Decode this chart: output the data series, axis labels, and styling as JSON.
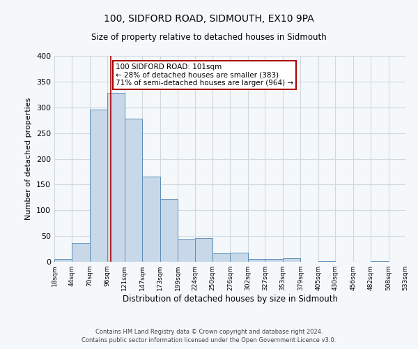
{
  "title1": "100, SIDFORD ROAD, SIDMOUTH, EX10 9PA",
  "title2": "Size of property relative to detached houses in Sidmouth",
  "xlabel": "Distribution of detached houses by size in Sidmouth",
  "ylabel": "Number of detached properties",
  "bin_edges": [
    18,
    44,
    70,
    96,
    121,
    147,
    173,
    199,
    224,
    250,
    276,
    302,
    327,
    353,
    379,
    405,
    430,
    456,
    482,
    508,
    533
  ],
  "bar_heights": [
    5,
    36,
    295,
    328,
    278,
    165,
    122,
    44,
    46,
    16,
    17,
    5,
    5,
    7,
    0,
    2,
    0,
    0,
    1,
    0
  ],
  "bar_color": "#c8d8e8",
  "bar_edge_color": "#5b8db8",
  "vline_x": 101,
  "vline_color": "#aa0000",
  "ylim": [
    0,
    400
  ],
  "yticks": [
    0,
    50,
    100,
    150,
    200,
    250,
    300,
    350,
    400
  ],
  "annotation_text": "100 SIDFORD ROAD: 101sqm\n← 28% of detached houses are smaller (383)\n71% of semi-detached houses are larger (964) →",
  "annotation_box_color": "#ffffff",
  "annotation_box_edge": "#aa0000",
  "footer1": "Contains HM Land Registry data © Crown copyright and database right 2024.",
  "footer2": "Contains public sector information licensed under the Open Government Licence v3.0.",
  "bg_color": "#f5f8fa",
  "grid_color": "#d0d8e0",
  "title1_fontsize": 10,
  "title2_fontsize": 8.5,
  "ylabel_fontsize": 8,
  "xlabel_fontsize": 8.5,
  "ytick_fontsize": 8,
  "xtick_fontsize": 6.5,
  "ann_fontsize": 7.5,
  "footer_fontsize": 6
}
